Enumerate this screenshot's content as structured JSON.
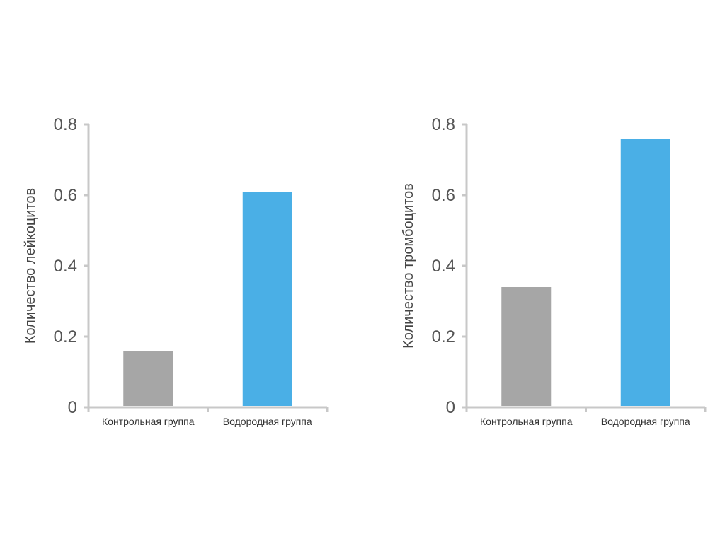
{
  "chart_data": [
    {
      "type": "bar",
      "categories": [
        "Контрольная группа",
        "Водородная группа"
      ],
      "values": [
        0.16,
        0.61
      ],
      "bar_colors": [
        "#a6a6a6",
        "#4aafe6"
      ],
      "ylabel": "Количество лейкоцитов",
      "xlabel": "",
      "ylim": [
        0,
        0.8
      ],
      "yticks": [
        0,
        0.2,
        0.4,
        0.6,
        0.8
      ],
      "ytick_labels": [
        "0",
        "0.2",
        "0.4",
        "0.6",
        "0.8"
      ],
      "grid": false
    },
    {
      "type": "bar",
      "categories": [
        "Контрольная группа",
        "Водородная группа"
      ],
      "values": [
        0.34,
        0.76
      ],
      "bar_colors": [
        "#a6a6a6",
        "#4aafe6"
      ],
      "ylabel": "Количество тромбоцитов",
      "xlabel": "",
      "ylim": [
        0,
        0.8
      ],
      "yticks": [
        0,
        0.2,
        0.4,
        0.6,
        0.8
      ],
      "ytick_labels": [
        "0",
        "0.2",
        "0.4",
        "0.6",
        "0.8"
      ],
      "grid": false
    }
  ],
  "colors": {
    "axis": "#c8c8c8"
  }
}
